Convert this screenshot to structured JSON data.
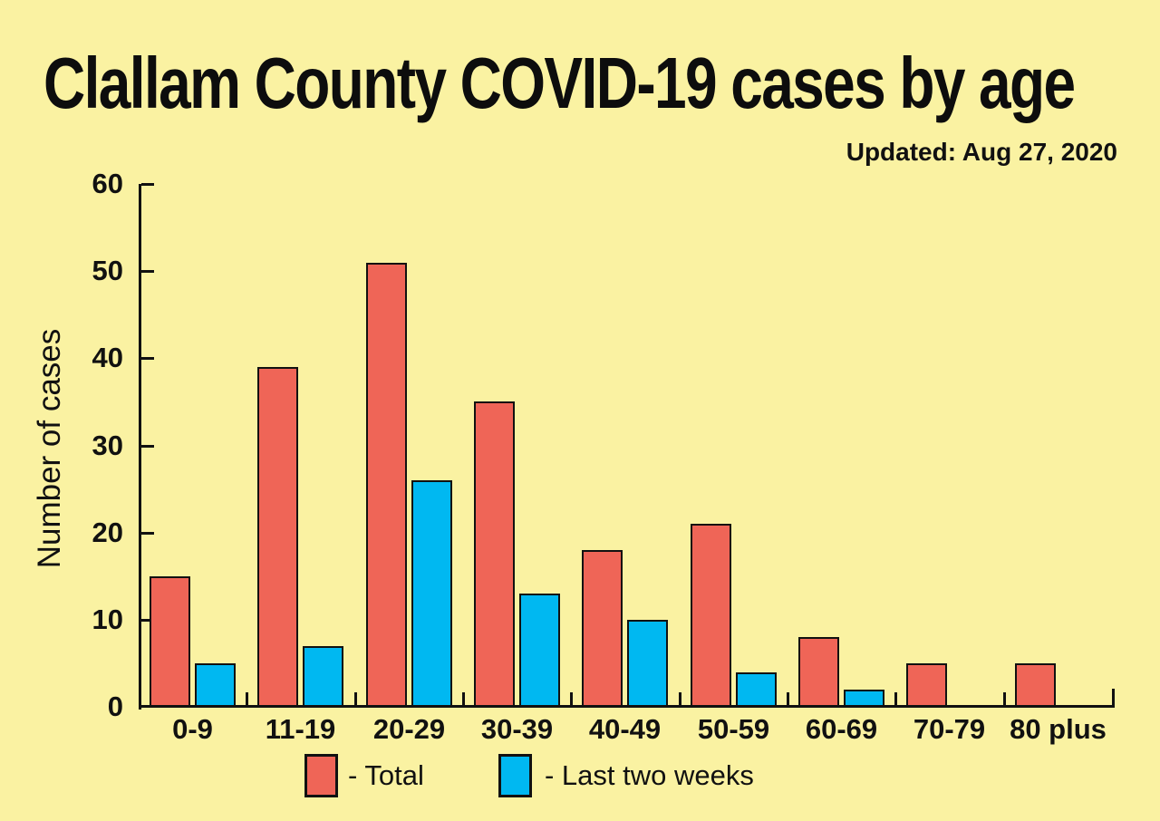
{
  "chart_data": {
    "type": "bar",
    "title": "Clallam County COVID-19 cases by age",
    "subtitle": "Updated: Aug 27, 2020",
    "categories": [
      "0-9",
      "11-19",
      "20-29",
      "30-39",
      "40-49",
      "50-59",
      "60-69",
      "70-79",
      "80 plus"
    ],
    "series": [
      {
        "name": "Total",
        "color": "#EF6557",
        "values": [
          15,
          39,
          51,
          35,
          18,
          21,
          8,
          5,
          5
        ]
      },
      {
        "name": "Last two weeks",
        "color": "#00B8F1",
        "values": [
          5,
          7,
          26,
          13,
          10,
          4,
          2,
          0,
          0
        ]
      }
    ],
    "xlabel": "",
    "ylabel": "Number of cases",
    "ylim": [
      0,
      60
    ],
    "ytick_step": 10,
    "yticks": [
      0,
      10,
      20,
      30,
      40,
      50,
      60
    ],
    "grid": false,
    "legend_position": "bottom",
    "legend": [
      {
        "label": "- Total",
        "color": "#EF6557"
      },
      {
        "label": "- Last two weeks",
        "color": "#00B8F1"
      }
    ]
  },
  "colors": {
    "background": "#FAF2A2",
    "bar_total": "#EF6557",
    "bar_recent": "#00B8F1",
    "axis": "#111111",
    "text": "#111111"
  }
}
